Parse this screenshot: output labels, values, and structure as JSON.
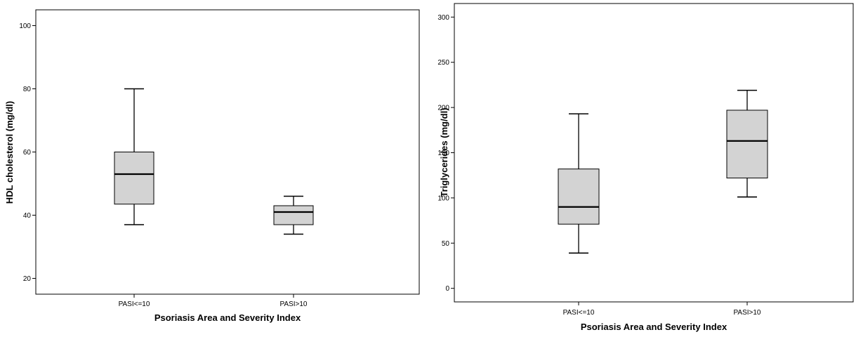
{
  "chart_data": [
    {
      "type": "box",
      "xlabel": "Psoriasis Area and Severity Index",
      "ylabel": "HDL cholesterol (mg/dl)",
      "ylim": [
        15,
        105
      ],
      "yticks": [
        20,
        40,
        60,
        80,
        100
      ],
      "categories": [
        "PASI<=10",
        "PASI>10"
      ],
      "boxes": [
        {
          "category": "PASI<=10",
          "min": 37,
          "q1": 43.5,
          "median": 53,
          "q3": 60,
          "max": 80
        },
        {
          "category": "PASI>10",
          "min": 34,
          "q1": 37,
          "median": 41,
          "q3": 43,
          "max": 46
        }
      ],
      "grid": false
    },
    {
      "type": "box",
      "xlabel": "Psoriasis Area and Severity Index",
      "ylabel": "Triglycerides (mg/dl)",
      "ylim": [
        -15,
        315
      ],
      "yticks": [
        0,
        50,
        100,
        150,
        200,
        250,
        300
      ],
      "categories": [
        "PASI<=10",
        "PASI>10"
      ],
      "boxes": [
        {
          "category": "PASI<=10",
          "min": 39,
          "q1": 71,
          "median": 90,
          "q3": 132,
          "max": 193
        },
        {
          "category": "PASI>10",
          "min": 101,
          "q1": 122,
          "median": 163,
          "q3": 197,
          "max": 219
        }
      ],
      "grid": false
    }
  ]
}
